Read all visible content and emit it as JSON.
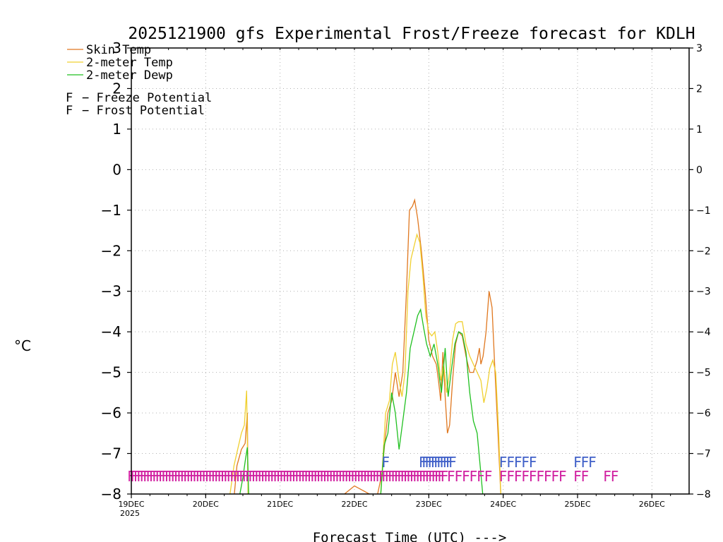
{
  "chart_data": {
    "type": "line",
    "title": "2025121900 gfs Experimental Frost/Freeze forecast for KDLH",
    "xlabel": "Forecast Time (UTC) --->",
    "ylabel": "°C",
    "ylim": [
      -8,
      3
    ],
    "yticks": [
      3,
      2,
      1,
      0,
      -1,
      -2,
      -3,
      -4,
      -5,
      -6,
      -7,
      -8
    ],
    "ytick_labels": [
      "3",
      "2",
      "1",
      "0",
      "−1",
      "−2",
      "−3",
      "−4",
      "−5",
      "−6",
      "−7",
      "−8"
    ],
    "xlim": [
      0,
      7.5
    ],
    "xticks": [
      0,
      1,
      2,
      3,
      4,
      5,
      6,
      7
    ],
    "xtick_labels": [
      "19DEC",
      "20DEC",
      "21DEC",
      "22DEC",
      "23DEC",
      "24DEC",
      "25DEC",
      "26DEC"
    ],
    "xtick_year": "2025",
    "grid": true,
    "legend_position": "top-left",
    "series": [
      {
        "name": "Skin Temp",
        "color": "#e07820",
        "points": [
          [
            1.38,
            -8.1
          ],
          [
            1.42,
            -7.3
          ],
          [
            1.48,
            -6.9
          ],
          [
            1.53,
            -6.75
          ],
          [
            1.56,
            -6.0
          ],
          [
            1.57,
            -8.1
          ],
          [
            2.8,
            -8.1
          ],
          [
            3.0,
            -7.8
          ],
          [
            3.3,
            -8.1
          ],
          [
            3.37,
            -7.5
          ],
          [
            3.4,
            -6.9
          ],
          [
            3.45,
            -6.0
          ],
          [
            3.5,
            -5.7
          ],
          [
            3.55,
            -5.0
          ],
          [
            3.6,
            -5.6
          ],
          [
            3.65,
            -5.0
          ],
          [
            3.7,
            -3.0
          ],
          [
            3.74,
            -1.0
          ],
          [
            3.78,
            -0.9
          ],
          [
            3.81,
            -0.75
          ],
          [
            3.85,
            -1.2
          ],
          [
            3.9,
            -2.0
          ],
          [
            3.95,
            -3.0
          ],
          [
            4.0,
            -4.2
          ],
          [
            4.05,
            -4.6
          ],
          [
            4.1,
            -4.8
          ],
          [
            4.13,
            -5.2
          ],
          [
            4.16,
            -5.7
          ],
          [
            4.19,
            -4.5
          ],
          [
            4.22,
            -5.6
          ],
          [
            4.25,
            -6.5
          ],
          [
            4.28,
            -6.3
          ],
          [
            4.32,
            -5.2
          ],
          [
            4.36,
            -4.3
          ],
          [
            4.4,
            -4.0
          ],
          [
            4.45,
            -4.1
          ],
          [
            4.5,
            -4.6
          ],
          [
            4.55,
            -5.0
          ],
          [
            4.6,
            -5.0
          ],
          [
            4.65,
            -4.7
          ],
          [
            4.68,
            -4.4
          ],
          [
            4.7,
            -4.8
          ],
          [
            4.73,
            -4.6
          ],
          [
            4.77,
            -4.0
          ],
          [
            4.81,
            -3.0
          ],
          [
            4.85,
            -3.4
          ],
          [
            4.89,
            -5.0
          ],
          [
            4.93,
            -6.5
          ],
          [
            4.97,
            -8.1
          ]
        ]
      },
      {
        "name": "2-meter Temp",
        "color": "#f0d030",
        "points": [
          [
            1.32,
            -8.1
          ],
          [
            1.38,
            -7.3
          ],
          [
            1.43,
            -6.9
          ],
          [
            1.48,
            -6.5
          ],
          [
            1.52,
            -6.3
          ],
          [
            1.55,
            -5.45
          ],
          [
            1.57,
            -8.1
          ],
          [
            3.35,
            -8.1
          ],
          [
            3.38,
            -7.2
          ],
          [
            3.42,
            -6.0
          ],
          [
            3.47,
            -5.7
          ],
          [
            3.51,
            -4.8
          ],
          [
            3.55,
            -4.5
          ],
          [
            3.6,
            -5.2
          ],
          [
            3.64,
            -5.6
          ],
          [
            3.68,
            -5.0
          ],
          [
            3.72,
            -3.0
          ],
          [
            3.76,
            -2.2
          ],
          [
            3.8,
            -1.9
          ],
          [
            3.84,
            -1.6
          ],
          [
            3.88,
            -1.8
          ],
          [
            3.92,
            -2.6
          ],
          [
            3.96,
            -3.6
          ],
          [
            4.0,
            -4.0
          ],
          [
            4.04,
            -4.1
          ],
          [
            4.08,
            -4.0
          ],
          [
            4.12,
            -4.5
          ],
          [
            4.16,
            -5.2
          ],
          [
            4.2,
            -4.8
          ],
          [
            4.24,
            -5.5
          ],
          [
            4.28,
            -5.0
          ],
          [
            4.32,
            -4.2
          ],
          [
            4.36,
            -3.8
          ],
          [
            4.4,
            -3.75
          ],
          [
            4.45,
            -3.75
          ],
          [
            4.5,
            -4.3
          ],
          [
            4.55,
            -4.6
          ],
          [
            4.6,
            -4.8
          ],
          [
            4.65,
            -5.0
          ],
          [
            4.7,
            -5.2
          ],
          [
            4.74,
            -5.75
          ],
          [
            4.78,
            -5.4
          ],
          [
            4.82,
            -4.9
          ],
          [
            4.86,
            -4.7
          ],
          [
            4.9,
            -5.0
          ],
          [
            4.94,
            -6.5
          ],
          [
            4.97,
            -8.1
          ]
        ]
      },
      {
        "name": "2-meter Dewp",
        "color": "#20c020",
        "points": [
          [
            1.45,
            -8.1
          ],
          [
            1.5,
            -7.6
          ],
          [
            1.53,
            -7.2
          ],
          [
            1.56,
            -6.85
          ],
          [
            1.58,
            -8.1
          ],
          [
            3.35,
            -8.1
          ],
          [
            3.4,
            -6.8
          ],
          [
            3.45,
            -6.5
          ],
          [
            3.5,
            -5.5
          ],
          [
            3.55,
            -6.0
          ],
          [
            3.6,
            -6.9
          ],
          [
            3.65,
            -6.2
          ],
          [
            3.7,
            -5.5
          ],
          [
            3.75,
            -4.4
          ],
          [
            3.8,
            -4.0
          ],
          [
            3.85,
            -3.6
          ],
          [
            3.89,
            -3.45
          ],
          [
            3.93,
            -3.9
          ],
          [
            3.97,
            -4.3
          ],
          [
            4.02,
            -4.6
          ],
          [
            4.07,
            -4.3
          ],
          [
            4.12,
            -4.8
          ],
          [
            4.17,
            -5.5
          ],
          [
            4.22,
            -4.4
          ],
          [
            4.26,
            -5.6
          ],
          [
            4.3,
            -5.0
          ],
          [
            4.35,
            -4.3
          ],
          [
            4.4,
            -4.0
          ],
          [
            4.45,
            -4.05
          ],
          [
            4.5,
            -4.5
          ],
          [
            4.55,
            -5.5
          ],
          [
            4.6,
            -6.2
          ],
          [
            4.65,
            -6.5
          ],
          [
            4.7,
            -7.5
          ],
          [
            4.73,
            -8.1
          ]
        ]
      }
    ],
    "markers": {
      "freeze": {
        "label": "Freeze Potential",
        "symbol": "F",
        "color": "#d020a0",
        "y": -7.55
      },
      "frost": {
        "label": "Frost Potential",
        "symbol": "F",
        "color": "#4060c8",
        "y": -7.2
      }
    }
  }
}
